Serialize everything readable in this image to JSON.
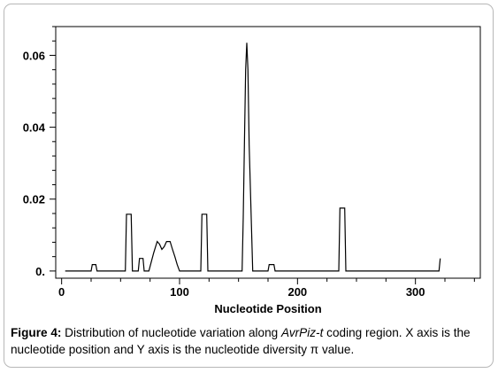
{
  "chart_data": {
    "type": "line",
    "title": "",
    "xlabel": "Nucleotide Position",
    "ylabel": "",
    "xlim": [
      -5,
      355
    ],
    "ylim": [
      -0.002,
      0.068
    ],
    "x_ticks": [
      0,
      100,
      200,
      300
    ],
    "x_tick_labels": [
      "0",
      "100",
      "200",
      "300"
    ],
    "y_ticks": [
      0,
      0.02,
      0.04,
      0.06
    ],
    "y_tick_labels": [
      "0.",
      "0.02",
      "0.04",
      "0.06"
    ],
    "grid": false,
    "legend": "none",
    "series": [
      {
        "color": "#000000",
        "x": [
          3,
          25,
          26,
          29,
          30,
          54,
          55,
          59,
          60,
          65,
          66,
          69,
          70,
          74,
          76,
          78,
          81,
          83,
          85,
          87,
          89,
          92,
          94,
          96,
          98,
          100,
          103,
          118,
          119,
          123,
          124,
          153,
          154,
          155,
          156,
          157,
          158,
          159,
          162,
          175,
          176,
          180,
          181,
          235,
          236,
          240,
          241,
          320,
          321
        ],
        "y": [
          0,
          0,
          0.0018,
          0.0018,
          0,
          0,
          0.0158,
          0.0158,
          0,
          0,
          0.0035,
          0.0035,
          0,
          0,
          0.0025,
          0.005,
          0.0082,
          0.0075,
          0.006,
          0.0068,
          0.0082,
          0.0082,
          0.006,
          0.004,
          0.0018,
          0,
          0,
          0,
          0.0158,
          0.0158,
          0,
          0,
          0.015,
          0.035,
          0.056,
          0.0635,
          0.056,
          0.035,
          0,
          0,
          0.0018,
          0.0018,
          0,
          0,
          0.0175,
          0.0175,
          0,
          0,
          0.0035
        ]
      }
    ]
  },
  "caption": {
    "label": "Figure 4:",
    "text_before": " Distribution of nucleotide variation along ",
    "gene": "AvrPiz-t",
    "text_after": " coding region. X axis is the nucleotide position and Y axis is the nucleotide diversity π value."
  }
}
